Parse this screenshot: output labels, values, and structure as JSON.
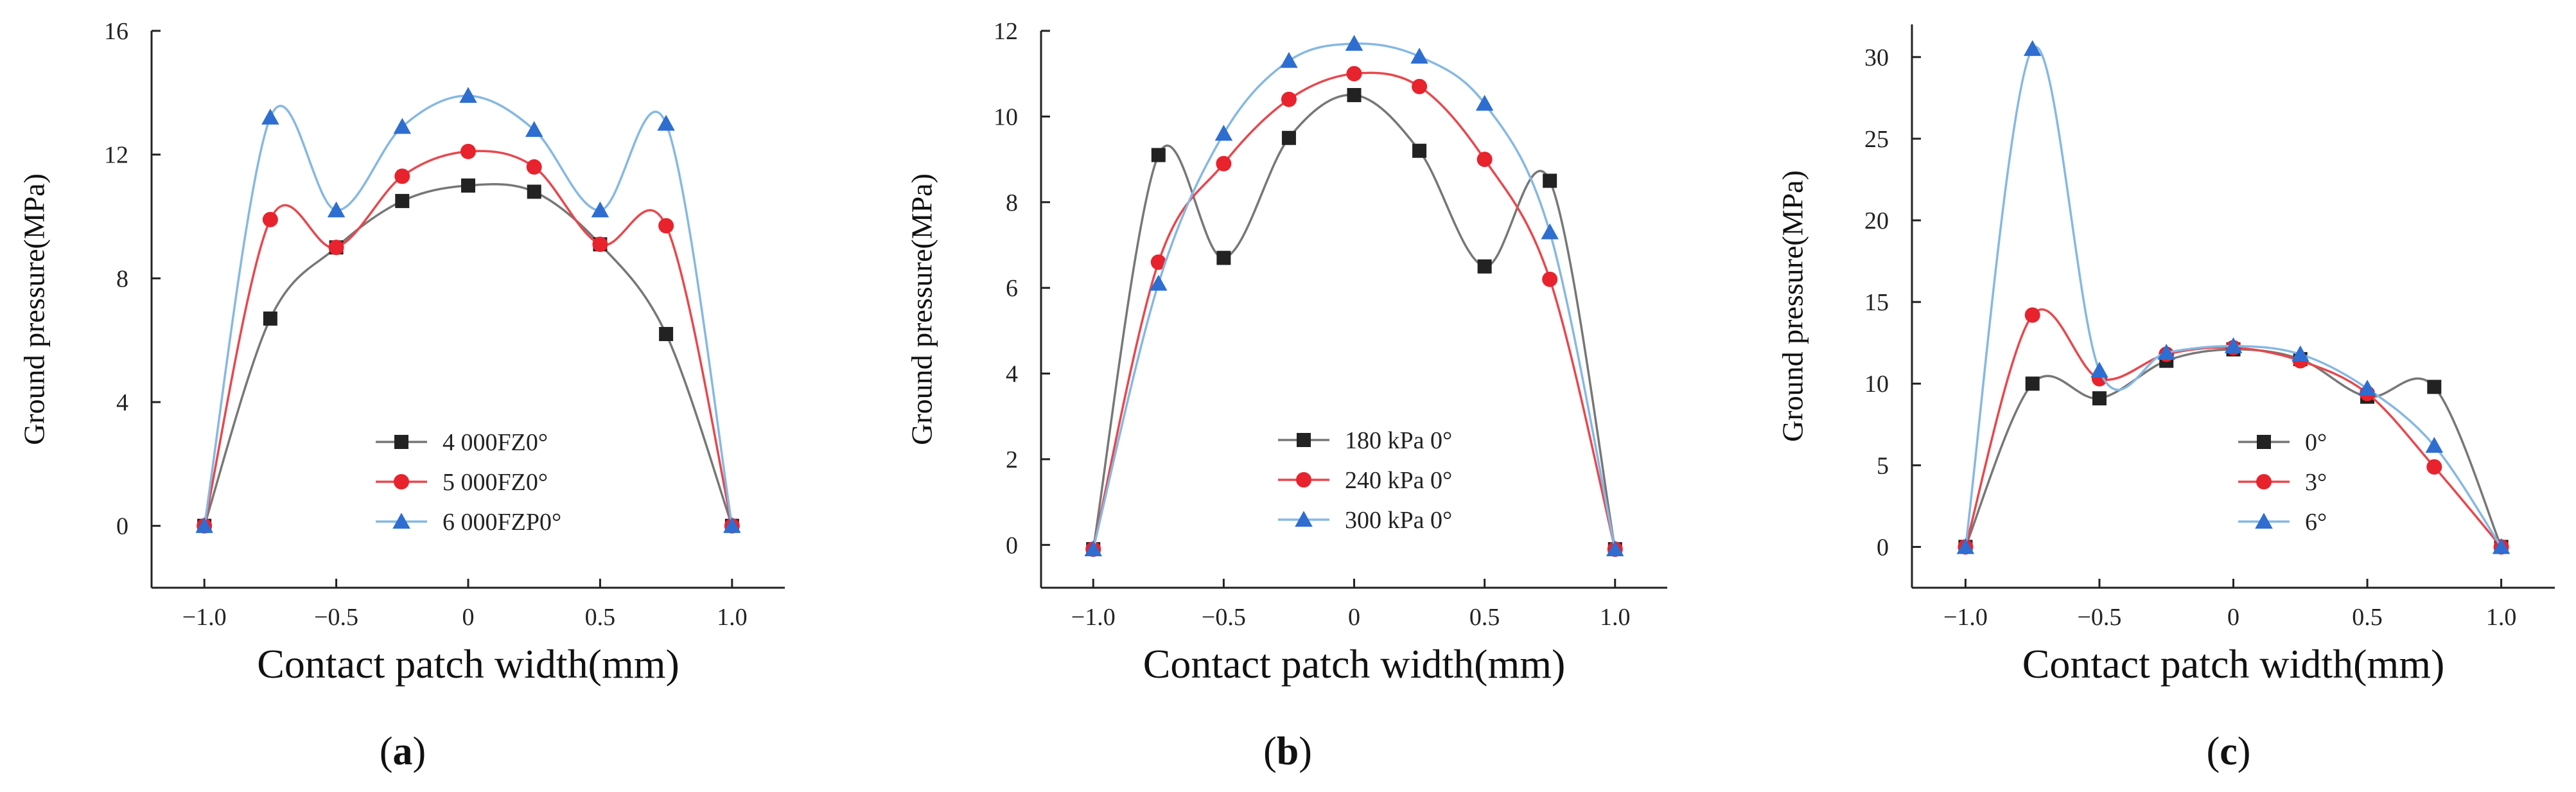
{
  "chart_data": [
    {
      "type": "line",
      "panel_label": "a",
      "xlabel": "Contact patch width(mm)",
      "ylabel": "Ground pressure(MPa)",
      "xlim": [
        -1.2,
        1.2
      ],
      "ylim": [
        -2,
        16
      ],
      "xticks": [
        -1.0,
        -0.5,
        0,
        0.5,
        1.0
      ],
      "xtick_labels": [
        "−1.0",
        "−0.5",
        "0",
        "0.5",
        "1.0"
      ],
      "yticks": [
        0,
        4,
        8,
        12,
        16
      ],
      "ytick_labels": [
        "0",
        "4",
        "8",
        "12",
        "16"
      ],
      "legend_placement": "lower-center",
      "x": [
        -1.0,
        -0.75,
        -0.5,
        -0.25,
        0,
        0.25,
        0.5,
        0.75,
        1.0
      ],
      "series": [
        {
          "name": "4 000FZ0°",
          "color": "#777777",
          "marker": "square",
          "marker_color": "#222222",
          "values": [
            0,
            6.7,
            9.0,
            10.5,
            11.0,
            10.8,
            9.1,
            6.2,
            0
          ]
        },
        {
          "name": "5 000FZ0°",
          "color": "#e8474d",
          "marker": "circle",
          "marker_color": "#e8232d",
          "values": [
            0,
            9.9,
            9.0,
            11.3,
            12.1,
            11.6,
            9.1,
            9.7,
            0
          ]
        },
        {
          "name": "6 000FZP0°",
          "color": "#86b8e3",
          "marker": "triangle",
          "marker_color": "#2e6ed1",
          "values": [
            0,
            13.2,
            10.2,
            12.9,
            13.9,
            12.8,
            10.2,
            13.0,
            0
          ]
        }
      ]
    },
    {
      "type": "line",
      "panel_label": "b",
      "xlabel": "Contact patch width(mm)",
      "ylabel": "Ground pressure(MPa)",
      "xlim": [
        -1.2,
        1.2
      ],
      "ylim": [
        -1,
        12
      ],
      "xticks": [
        -1.0,
        -0.5,
        0,
        0.5,
        1.0
      ],
      "xtick_labels": [
        "−1.0",
        "−0.5",
        "0",
        "0.5",
        "1.0"
      ],
      "yticks": [
        0,
        2,
        4,
        6,
        8,
        10,
        12
      ],
      "ytick_labels": [
        "0",
        "2",
        "4",
        "6",
        "8",
        "10",
        "12"
      ],
      "legend_placement": "lower-center",
      "x": [
        -1.0,
        -0.75,
        -0.5,
        -0.25,
        0,
        0.25,
        0.5,
        0.75,
        1.0
      ],
      "series": [
        {
          "name": "180 kPa 0°",
          "color": "#777777",
          "marker": "square",
          "marker_color": "#222222",
          "values": [
            -0.1,
            9.1,
            6.7,
            9.5,
            10.5,
            9.2,
            6.5,
            8.5,
            -0.1
          ]
        },
        {
          "name": "240 kPa 0°",
          "color": "#e8474d",
          "marker": "circle",
          "marker_color": "#e8232d",
          "values": [
            -0.1,
            6.6,
            8.9,
            10.4,
            11.0,
            10.7,
            9.0,
            6.2,
            -0.1
          ]
        },
        {
          "name": "300 kPa 0°",
          "color": "#86b8e3",
          "marker": "triangle",
          "marker_color": "#2e6ed1",
          "values": [
            -0.1,
            6.1,
            9.6,
            11.3,
            11.7,
            11.4,
            10.3,
            7.3,
            -0.1
          ]
        }
      ]
    },
    {
      "type": "line",
      "panel_label": "c",
      "xlabel": "Contact patch width(mm)",
      "ylabel": "Ground pressure(MPa)",
      "xlim": [
        -1.2,
        1.2
      ],
      "ylim": [
        -2.5,
        32
      ],
      "xticks": [
        -1.0,
        -0.5,
        0,
        0.5,
        1.0
      ],
      "xtick_labels": [
        "−1.0",
        "−0.5",
        "0",
        "0.5",
        "1.0"
      ],
      "yticks": [
        0,
        5,
        10,
        15,
        20,
        25,
        30
      ],
      "ytick_labels": [
        "0",
        "5",
        "10",
        "15",
        "20",
        "25",
        "30"
      ],
      "legend_placement": "lower-left",
      "x": [
        -1.0,
        -0.75,
        -0.5,
        -0.25,
        0,
        0.25,
        0.5,
        0.75,
        1.0
      ],
      "series": [
        {
          "name": "0°",
          "color": "#777777",
          "marker": "square",
          "marker_color": "#222222",
          "values": [
            0,
            10.0,
            9.1,
            11.4,
            12.1,
            11.5,
            9.2,
            9.8,
            0
          ]
        },
        {
          "name": "3°",
          "color": "#e8474d",
          "marker": "circle",
          "marker_color": "#e8232d",
          "values": [
            0,
            14.2,
            10.3,
            11.8,
            12.2,
            11.4,
            9.4,
            4.9,
            0
          ]
        },
        {
          "name": "6°",
          "color": "#86b8e3",
          "marker": "triangle",
          "marker_color": "#2e6ed1",
          "values": [
            0,
            30.5,
            10.8,
            11.9,
            12.3,
            11.8,
            9.7,
            6.2,
            0
          ]
        }
      ]
    }
  ]
}
